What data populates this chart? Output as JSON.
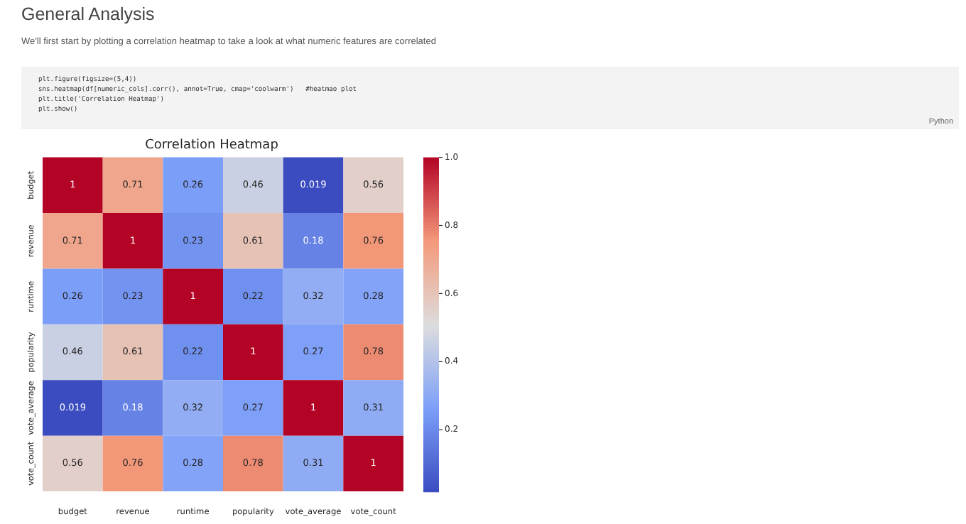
{
  "chart_data": {
    "type": "heatmap",
    "title": "Correlation Heatmap",
    "categories": [
      "budget",
      "revenue",
      "runtime",
      "popularity",
      "vote_average",
      "vote_count"
    ],
    "y_categories": [
      "budget",
      "revenue",
      "runtime",
      "popularity",
      "vote_average",
      "vote_count"
    ],
    "cells": [
      [
        1,
        0.71,
        0.26,
        0.46,
        0.019,
        0.56
      ],
      [
        0.71,
        1,
        0.23,
        0.61,
        0.18,
        0.76
      ],
      [
        0.26,
        0.23,
        1,
        0.22,
        0.32,
        0.28
      ],
      [
        0.46,
        0.61,
        0.22,
        1,
        0.27,
        0.78
      ],
      [
        0.019,
        0.18,
        0.32,
        0.27,
        1,
        0.31
      ],
      [
        0.56,
        0.76,
        0.28,
        0.78,
        0.31,
        1
      ]
    ],
    "data_labels": true,
    "clim": [
      0.019,
      1
    ],
    "cticks": [
      0.2,
      0.4,
      0.6,
      0.8,
      {
        "value": 1,
        "label": "1.0"
      }
    ],
    "annotations": [
      "General Analysis",
      "We'll first start by plotting a correlation heatmap to take a look at what numeric features are correlated",
      "plt.figure(figsize=(5,4))",
      "sns.heatmap(df[numeric_cols].corr(), annot=True, cmap='coolwarm')   #heatmao plot",
      "plt.title('Correlation Heatmap')",
      "plt.show()",
      "Python"
    ]
  }
}
